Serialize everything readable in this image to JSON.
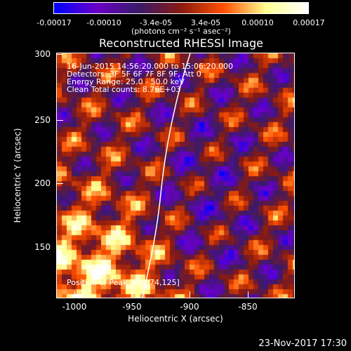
{
  "colorbar": {
    "ticks": [
      "-0.00017",
      "-0.00010",
      "-3.4e-05",
      "3.4e-05",
      "0.00010",
      "0.00017"
    ],
    "units": "(photons cm⁻² s⁻¹ asec⁻²)",
    "colors": [
      "#0000ff",
      "#6a00c8",
      "#3a1a6a",
      "#8a1a10",
      "#ff5000",
      "#ffff90",
      "#ffffff"
    ]
  },
  "title": "Reconstructed RHESSI Image",
  "annotations": {
    "time": "16-Jun-2015 14:56:20.000 to 15:06:20.000",
    "detectors": "Detectors: 3F 5F 6F 7F 8F 9F, Att 0",
    "energy": "Energy Range: 25.0 - 50.0 keV",
    "clean": "Clean    Total counts: 8.76E+03",
    "peak": "Position of Peak = [-974,125]"
  },
  "axes": {
    "x_ticks": [
      "-1000",
      "-950",
      "-900",
      "-850"
    ],
    "y_ticks": [
      "300",
      "250",
      "200",
      "150"
    ],
    "x_label": "Heliocentric X (arcsec)",
    "y_label": "Heliocentric Y (arcsec)"
  },
  "footer": {
    "date": "23-Nov-2017 17:30"
  }
}
